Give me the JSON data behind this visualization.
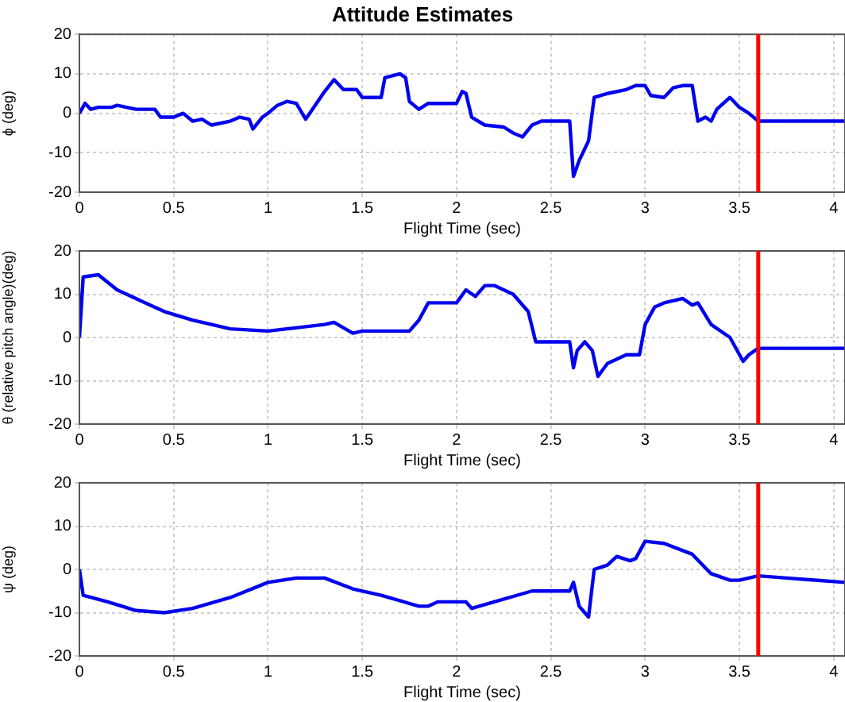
{
  "chart_data": [
    {
      "type": "line",
      "title": "Attitude Estimates",
      "xlabel": "Flight Time (sec)",
      "ylabel": "ϕ (deg)",
      "grid": true,
      "legend": false,
      "marker": "none",
      "line_style": "solid",
      "xlim": [
        0,
        4.06
      ],
      "xticks": [
        0,
        0.5,
        1,
        1.5,
        2,
        2.5,
        3,
        3.5,
        4
      ],
      "ylim": [
        -20,
        20
      ],
      "yticks": [
        -20,
        -10,
        0,
        10,
        20
      ],
      "ref_lines": [
        {
          "axis": "x",
          "value": 3.6,
          "color": "#ff0000"
        }
      ],
      "x": [
        0,
        0.03,
        0.06,
        0.1,
        0.17,
        0.2,
        0.3,
        0.4,
        0.43,
        0.5,
        0.55,
        0.6,
        0.65,
        0.7,
        0.8,
        0.85,
        0.9,
        0.92,
        0.97,
        1.0,
        1.05,
        1.1,
        1.15,
        1.2,
        1.25,
        1.3,
        1.35,
        1.4,
        1.47,
        1.5,
        1.6,
        1.62,
        1.7,
        1.73,
        1.75,
        1.8,
        1.85,
        2.0,
        2.03,
        2.05,
        2.08,
        2.15,
        2.25,
        2.3,
        2.35,
        2.4,
        2.45,
        2.6,
        2.62,
        2.65,
        2.7,
        2.73,
        2.8,
        2.9,
        2.95,
        3.0,
        3.03,
        3.1,
        3.15,
        3.2,
        3.25,
        3.28,
        3.32,
        3.35,
        3.38,
        3.45,
        3.5,
        3.55,
        3.6,
        4.06
      ],
      "series": [
        {
          "color": "#0000ee",
          "values": [
            0,
            2.5,
            1,
            1.5,
            1.5,
            2,
            1,
            1,
            -1,
            -1,
            0,
            -2,
            -1.5,
            -3,
            -2,
            -1,
            -1.5,
            -4,
            -1,
            0,
            2,
            3,
            2.5,
            -1.5,
            2,
            5.5,
            8.5,
            6,
            6,
            4,
            4,
            9,
            10,
            9,
            3,
            1,
            2.5,
            2.5,
            5.5,
            5,
            -1,
            -3,
            -3.5,
            -5,
            -6,
            -3,
            -2,
            -2,
            -16,
            -12,
            -7,
            4,
            5,
            6,
            7,
            7,
            4.5,
            4,
            6.5,
            7,
            7,
            -2,
            -1,
            -2,
            1,
            4,
            1.5,
            0,
            -2,
            -2
          ]
        }
      ]
    },
    {
      "type": "line",
      "xlabel": "Flight Time (sec)",
      "ylabel": "θ (relative pitch angle)(deg)",
      "grid": true,
      "legend": false,
      "marker": "none",
      "line_style": "solid",
      "xlim": [
        0,
        4.06
      ],
      "xticks": [
        0,
        0.5,
        1,
        1.5,
        2,
        2.5,
        3,
        3.5,
        4
      ],
      "ylim": [
        -20,
        20
      ],
      "yticks": [
        -20,
        -10,
        0,
        10,
        20
      ],
      "ref_lines": [
        {
          "axis": "x",
          "value": 3.6,
          "color": "#ff0000"
        }
      ],
      "x": [
        0,
        0.02,
        0.1,
        0.2,
        0.35,
        0.45,
        0.6,
        0.8,
        1.0,
        1.2,
        1.3,
        1.35,
        1.45,
        1.5,
        1.75,
        1.8,
        1.85,
        2.0,
        2.05,
        2.1,
        2.15,
        2.2,
        2.3,
        2.38,
        2.42,
        2.6,
        2.62,
        2.64,
        2.68,
        2.72,
        2.75,
        2.8,
        2.9,
        2.97,
        3.0,
        3.05,
        3.1,
        3.2,
        3.25,
        3.28,
        3.35,
        3.45,
        3.52,
        3.55,
        3.6,
        4.06
      ],
      "series": [
        {
          "color": "#0000ee",
          "values": [
            0,
            14,
            14.5,
            11,
            8,
            6,
            4,
            2,
            1.5,
            2.5,
            3,
            3.5,
            1,
            1.5,
            1.5,
            4,
            8,
            8,
            11,
            9.5,
            12,
            12,
            10,
            6,
            -1,
            -1,
            -7,
            -3,
            -1,
            -3,
            -9,
            -6,
            -4,
            -4,
            3,
            7,
            8,
            9,
            7.5,
            8,
            3,
            0,
            -5.5,
            -4,
            -2.5,
            -2.5
          ]
        }
      ]
    },
    {
      "type": "line",
      "xlabel": "Flight Time (sec)",
      "ylabel": "ψ (deg)",
      "grid": true,
      "legend": false,
      "marker": "none",
      "line_style": "solid",
      "xlim": [
        0,
        4.06
      ],
      "xticks": [
        0,
        0.5,
        1,
        1.5,
        2,
        2.5,
        3,
        3.5,
        4
      ],
      "ylim": [
        -20,
        20
      ],
      "yticks": [
        -20,
        -10,
        0,
        10,
        20
      ],
      "ref_lines": [
        {
          "axis": "x",
          "value": 3.6,
          "color": "#ff0000"
        }
      ],
      "x": [
        0,
        0.02,
        0.15,
        0.3,
        0.45,
        0.6,
        0.8,
        1.0,
        1.15,
        1.3,
        1.45,
        1.6,
        1.8,
        1.85,
        1.9,
        2.05,
        2.08,
        2.2,
        2.4,
        2.6,
        2.62,
        2.65,
        2.7,
        2.73,
        2.8,
        2.85,
        2.92,
        2.95,
        3.0,
        3.1,
        3.25,
        3.35,
        3.45,
        3.5,
        3.6,
        3.75,
        4.06
      ],
      "series": [
        {
          "color": "#0000ee",
          "values": [
            0,
            -6,
            -7.5,
            -9.5,
            -10,
            -9,
            -6.5,
            -3,
            -2,
            -2,
            -4.5,
            -6,
            -8.5,
            -8.5,
            -7.5,
            -7.5,
            -9,
            -7.5,
            -5,
            -5,
            -3,
            -8.5,
            -11,
            0,
            1,
            3,
            2,
            2.5,
            6.5,
            6,
            3.5,
            -1,
            -2.5,
            -2.5,
            -1.5,
            -2,
            -3
          ]
        }
      ]
    }
  ]
}
